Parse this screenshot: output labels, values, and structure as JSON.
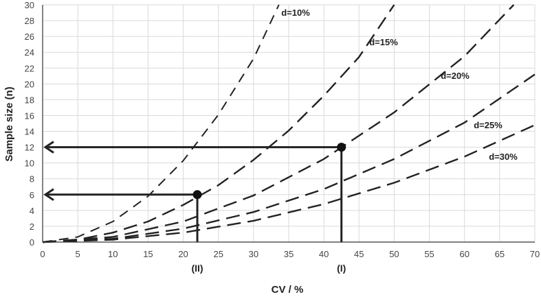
{
  "chart_data": {
    "type": "line",
    "xlabel": "CV / %",
    "ylabel": "Sample size (n)",
    "xlim": [
      0,
      70
    ],
    "ylim": [
      0,
      30
    ],
    "x_ticks": [
      0,
      5,
      10,
      15,
      20,
      25,
      30,
      35,
      40,
      45,
      50,
      55,
      60,
      65,
      70
    ],
    "y_ticks": [
      0,
      2,
      4,
      6,
      8,
      10,
      12,
      14,
      16,
      18,
      20,
      22,
      24,
      26,
      28,
      30
    ],
    "grid": true,
    "line_style": "dashed",
    "series": [
      {
        "name": "d=10%",
        "x": [
          0,
          5,
          10,
          15,
          20,
          25,
          30,
          33.6
        ],
        "values": [
          0,
          0.65,
          2.6,
          5.8,
          10.3,
          16.1,
          23.2,
          30
        ]
      },
      {
        "name": "d=15%",
        "x": [
          0,
          5,
          10,
          15,
          20,
          25,
          30,
          35,
          40,
          45,
          50
        ],
        "values": [
          0,
          0.3,
          1.2,
          2.6,
          4.7,
          7.2,
          10.4,
          14.1,
          18.5,
          23.4,
          30
        ]
      },
      {
        "name": "d=20%",
        "x": [
          0,
          10,
          20,
          30,
          40,
          50,
          60,
          67
        ],
        "values": [
          0,
          0.65,
          2.6,
          5.9,
          10.5,
          16.4,
          23.5,
          30
        ]
      },
      {
        "name": "d=25%",
        "x": [
          0,
          10,
          20,
          30,
          40,
          50,
          60,
          70
        ],
        "values": [
          0,
          0.42,
          1.7,
          3.8,
          6.7,
          10.5,
          15.1,
          21.2
        ]
      },
      {
        "name": "d=30%",
        "x": [
          0,
          10,
          20,
          30,
          40,
          50,
          60,
          70
        ],
        "values": [
          0,
          0.3,
          1.2,
          2.7,
          4.8,
          7.5,
          10.8,
          14.8
        ]
      }
    ],
    "annotations": [
      {
        "label": "(I)",
        "point": [
          42.5,
          12
        ],
        "arrow_to_y": 12
      },
      {
        "label": "(II)",
        "point": [
          22,
          6
        ],
        "arrow_to_y": 6
      }
    ]
  }
}
